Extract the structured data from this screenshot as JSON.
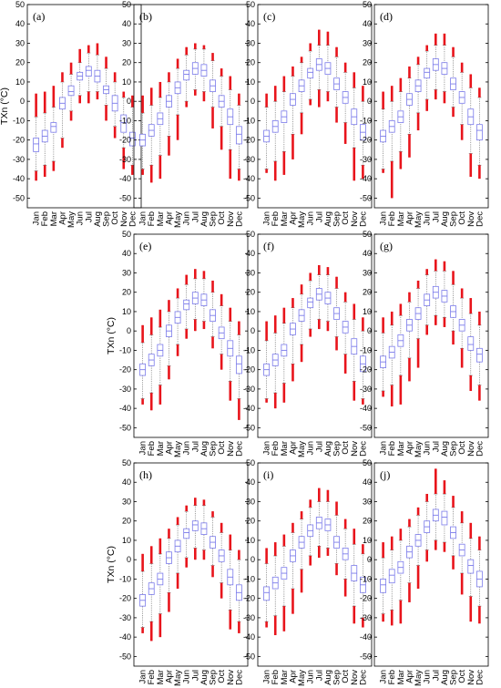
{
  "chart_data": {
    "type": "boxplot",
    "ylabel": "TXn (°C)",
    "ylim": [
      -55,
      50
    ],
    "yticks": [
      -50,
      -40,
      -30,
      -20,
      -10,
      0,
      10,
      20,
      30,
      40,
      50
    ],
    "categories": [
      "Jan",
      "Feb",
      "Mar",
      "Apr",
      "May",
      "Jun",
      "Jul",
      "Aug",
      "Sep",
      "Oct",
      "Nov",
      "Dec"
    ],
    "colors": {
      "box": "#7b7bea",
      "outlier": "#e8141b",
      "whisker": "#777777",
      "axis": "#000000"
    },
    "panels": [
      {
        "label": "(a)",
        "median": [
          -22,
          -18,
          -13,
          -1,
          5,
          13,
          16,
          13,
          6,
          -1,
          -11,
          -19
        ],
        "q1": [
          -26,
          -21,
          -16,
          -4,
          3,
          11,
          13,
          10,
          4,
          -5,
          -16,
          -23
        ],
        "q3": [
          -19,
          -15,
          -11,
          2,
          8,
          15,
          18,
          16,
          8,
          3,
          -7,
          -16
        ],
        "wlow": [
          -36,
          -33,
          -31,
          -19,
          -5,
          3,
          5,
          5,
          -2,
          -13,
          -24,
          -33
        ],
        "whigh": [
          -8,
          -6,
          -3,
          10,
          14,
          20,
          25,
          24,
          17,
          10,
          2,
          -3
        ],
        "olow": [
          -41,
          -39,
          -36,
          -24,
          -10,
          -1,
          -1,
          1,
          -10,
          -19,
          -35,
          -38
        ],
        "ohigh": [
          4,
          5,
          8,
          15,
          20,
          27,
          29,
          30,
          23,
          15,
          5,
          3
        ]
      },
      {
        "label": "(b)",
        "median": [
          -20,
          -15,
          -9,
          0,
          7,
          14,
          17,
          16,
          8,
          0,
          -8,
          -17
        ],
        "q1": [
          -23,
          -18,
          -12,
          -3,
          4,
          11,
          14,
          13,
          5,
          -3,
          -12,
          -22
        ],
        "q3": [
          -17,
          -12,
          -6,
          3,
          10,
          16,
          20,
          19,
          11,
          3,
          -4,
          -13
        ],
        "wlow": [
          -35,
          -33,
          -28,
          -18,
          -7,
          0,
          6,
          5,
          -3,
          -13,
          -25,
          -35
        ],
        "whigh": [
          -6,
          -2,
          2,
          10,
          17,
          24,
          27,
          27,
          21,
          13,
          6,
          -2
        ],
        "olow": [
          -38,
          -42,
          -40,
          -28,
          -20,
          -3,
          3,
          0,
          -14,
          -25,
          -40,
          -41
        ],
        "ohigh": [
          3,
          7,
          10,
          15,
          22,
          28,
          30,
          29,
          25,
          17,
          13,
          4
        ]
      },
      {
        "label": "(c)",
        "median": [
          -18,
          -13,
          -8,
          1,
          8,
          15,
          19,
          17,
          9,
          2,
          -8,
          -16
        ],
        "q1": [
          -21,
          -16,
          -11,
          -2,
          5,
          12,
          16,
          14,
          6,
          -1,
          -12,
          -20
        ],
        "q3": [
          -15,
          -10,
          -5,
          4,
          11,
          17,
          22,
          20,
          12,
          5,
          -4,
          -12
        ],
        "wlow": [
          -35,
          -31,
          -26,
          -17,
          -6,
          1,
          6,
          5,
          -3,
          -11,
          -24,
          -33
        ],
        "whigh": [
          -3,
          0,
          5,
          13,
          20,
          26,
          29,
          29,
          23,
          15,
          7,
          0
        ],
        "olow": [
          -37,
          -41,
          -38,
          -30,
          -17,
          -2,
          -3,
          0,
          -11,
          -22,
          -41,
          -40
        ],
        "ohigh": [
          4,
          8,
          13,
          18,
          23,
          30,
          37,
          36,
          28,
          20,
          15,
          8
        ]
      },
      {
        "label": "(d)",
        "median": [
          -18,
          -13,
          -8,
          1,
          8,
          15,
          19,
          17,
          9,
          2,
          -8,
          -15
        ],
        "q1": [
          -21,
          -16,
          -11,
          -2,
          5,
          12,
          16,
          14,
          6,
          -1,
          -12,
          -20
        ],
        "q3": [
          -15,
          -10,
          -5,
          4,
          11,
          17,
          22,
          20,
          12,
          5,
          -4,
          -12
        ],
        "wlow": [
          -35,
          -31,
          -26,
          -17,
          -6,
          1,
          6,
          5,
          -3,
          -12,
          -27,
          -33
        ],
        "whigh": [
          -4,
          0,
          5,
          12,
          19,
          26,
          29,
          29,
          23,
          15,
          7,
          2
        ],
        "olow": [
          -37,
          -50,
          -35,
          -29,
          -15,
          -5,
          1,
          -1,
          -8,
          -20,
          -39,
          -40
        ],
        "ohigh": [
          5,
          8,
          12,
          18,
          23,
          29,
          35,
          35,
          28,
          20,
          14,
          7
        ]
      },
      {
        "label": "(e)",
        "median": [
          -20,
          -15,
          -10,
          0,
          7,
          14,
          17,
          16,
          8,
          -1,
          -9,
          -17
        ],
        "q1": [
          -23,
          -18,
          -13,
          -3,
          4,
          11,
          14,
          13,
          5,
          -4,
          -13,
          -22
        ],
        "q3": [
          -17,
          -12,
          -7,
          3,
          10,
          16,
          20,
          19,
          11,
          2,
          -5,
          -13
        ],
        "wlow": [
          -35,
          -32,
          -28,
          -18,
          -7,
          1,
          6,
          5,
          -3,
          -12,
          -26,
          -35
        ],
        "whigh": [
          -6,
          -2,
          2,
          10,
          17,
          24,
          27,
          27,
          20,
          13,
          5,
          -2
        ],
        "olow": [
          -38,
          -41,
          -38,
          -25,
          -13,
          -4,
          0,
          1,
          -9,
          -20,
          -36,
          -46
        ],
        "ohigh": [
          3,
          7,
          11,
          16,
          22,
          29,
          32,
          31,
          26,
          19,
          12,
          5
        ]
      },
      {
        "label": "(f)",
        "median": [
          -20,
          -15,
          -10,
          1,
          8,
          15,
          19,
          17,
          9,
          2,
          -8,
          -17
        ],
        "q1": [
          -23,
          -18,
          -13,
          -2,
          5,
          12,
          16,
          14,
          6,
          -1,
          -12,
          -21
        ],
        "q3": [
          -17,
          -12,
          -7,
          4,
          11,
          17,
          22,
          20,
          12,
          5,
          -4,
          -13
        ],
        "wlow": [
          -35,
          -32,
          -27,
          -17,
          -7,
          1,
          6,
          5,
          -3,
          -12,
          -26,
          -35
        ],
        "whigh": [
          -5,
          -1,
          4,
          12,
          19,
          26,
          29,
          29,
          22,
          15,
          6,
          0
        ],
        "olow": [
          -37,
          -40,
          -37,
          -26,
          -16,
          -3,
          1,
          0,
          -10,
          -22,
          -36,
          -38
        ],
        "ohigh": [
          5,
          8,
          12,
          17,
          24,
          30,
          34,
          33,
          28,
          20,
          14,
          7
        ]
      },
      {
        "label": "(g)",
        "median": [
          -16,
          -11,
          -5,
          3,
          9,
          16,
          20,
          18,
          10,
          3,
          -7,
          -12
        ],
        "q1": [
          -19,
          -14,
          -8,
          0,
          6,
          13,
          17,
          15,
          7,
          0,
          -10,
          -16
        ],
        "q3": [
          -13,
          -8,
          -2,
          6,
          12,
          19,
          23,
          21,
          13,
          6,
          -3,
          -9
        ],
        "wlow": [
          -31,
          -28,
          -23,
          -14,
          -4,
          3,
          8,
          7,
          0,
          -9,
          -23,
          -28
        ],
        "whigh": [
          -1,
          3,
          8,
          15,
          22,
          29,
          31,
          31,
          24,
          17,
          9,
          3
        ],
        "olow": [
          -34,
          -39,
          -38,
          -26,
          -19,
          -2,
          3,
          2,
          -7,
          -19,
          -31,
          -36
        ],
        "ohigh": [
          7,
          10,
          14,
          20,
          26,
          32,
          37,
          36,
          31,
          22,
          17,
          10
        ]
      },
      {
        "label": "(h)",
        "median": [
          -21,
          -15,
          -10,
          1,
          7,
          14,
          18,
          16,
          9,
          2,
          -9,
          -17
        ],
        "q1": [
          -24,
          -18,
          -13,
          -2,
          4,
          11,
          15,
          13,
          6,
          -1,
          -13,
          -21
        ],
        "q3": [
          -18,
          -12,
          -7,
          4,
          10,
          16,
          20,
          19,
          12,
          5,
          -5,
          -13
        ],
        "wlow": [
          -35,
          -32,
          -28,
          -17,
          -7,
          1,
          6,
          5,
          -3,
          -12,
          -26,
          -32
        ],
        "whigh": [
          -6,
          -2,
          3,
          11,
          18,
          25,
          28,
          28,
          22,
          14,
          5,
          0
        ],
        "olow": [
          -38,
          -42,
          -40,
          -27,
          -15,
          -4,
          0,
          0,
          -9,
          -20,
          -36,
          -38
        ],
        "ohigh": [
          3,
          7,
          11,
          16,
          22,
          28,
          32,
          31,
          25,
          19,
          13,
          5
        ]
      },
      {
        "label": "(i)",
        "median": [
          -17,
          -12,
          -7,
          2,
          9,
          15,
          19,
          18,
          9,
          3,
          -7,
          -13
        ],
        "q1": [
          -21,
          -15,
          -10,
          -1,
          6,
          12,
          16,
          15,
          6,
          0,
          -11,
          -17
        ],
        "q3": [
          -14,
          -9,
          -4,
          5,
          12,
          18,
          22,
          21,
          12,
          6,
          -3,
          -9
        ],
        "wlow": [
          -32,
          -29,
          -24,
          -15,
          -5,
          2,
          7,
          6,
          -2,
          -10,
          -24,
          -30
        ],
        "whigh": [
          -2,
          2,
          7,
          14,
          21,
          27,
          30,
          30,
          23,
          16,
          8,
          3
        ],
        "olow": [
          -35,
          -39,
          -37,
          -28,
          -17,
          -3,
          1,
          2,
          -8,
          -19,
          -33,
          -35
        ],
        "ohigh": [
          6,
          9,
          13,
          19,
          25,
          31,
          37,
          36,
          30,
          21,
          16,
          8
        ]
      },
      {
        "label": "(j)",
        "median": [
          -13,
          -8,
          -4,
          4,
          10,
          17,
          23,
          22,
          14,
          5,
          -3,
          -10
        ],
        "q1": [
          -17,
          -12,
          -7,
          1,
          7,
          14,
          20,
          18,
          11,
          2,
          -7,
          -14
        ],
        "q3": [
          -10,
          -5,
          -1,
          7,
          13,
          20,
          26,
          25,
          17,
          8,
          0,
          -6
        ],
        "wlow": [
          -28,
          -26,
          -21,
          -12,
          -3,
          5,
          10,
          9,
          2,
          -7,
          -19,
          -24
        ],
        "whigh": [
          1,
          5,
          10,
          17,
          23,
          30,
          34,
          34,
          27,
          19,
          11,
          5
        ],
        "olow": [
          -32,
          -34,
          -33,
          -22,
          -15,
          -1,
          5,
          4,
          -5,
          -18,
          -32,
          -33
        ],
        "ohigh": [
          9,
          12,
          16,
          21,
          27,
          34,
          47,
          41,
          33,
          25,
          19,
          12
        ]
      }
    ]
  }
}
